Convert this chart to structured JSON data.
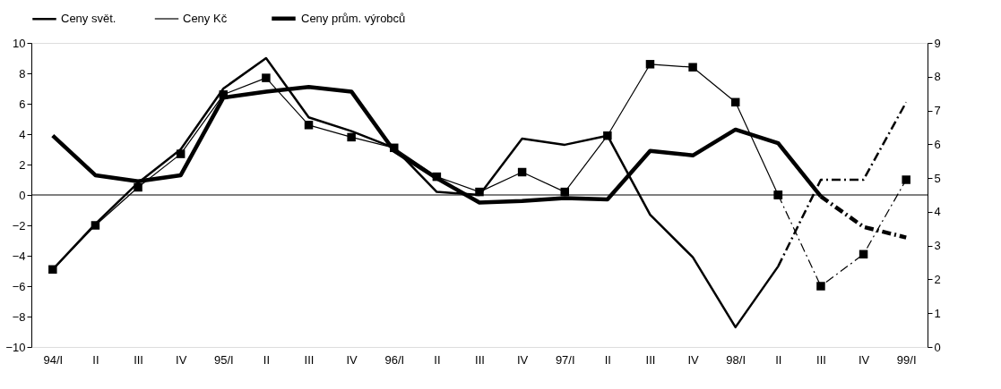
{
  "chart_data": {
    "type": "line",
    "categories": [
      "94/I",
      "II",
      "III",
      "IV",
      "95/I",
      "II",
      "III",
      "IV",
      "96/I",
      "II",
      "III",
      "IV",
      "97/I",
      "II",
      "III",
      "IV",
      "98/I",
      "II",
      "III",
      "IV",
      "99/I"
    ],
    "series": [
      {
        "name": "Ceny svět.",
        "color": "#000000",
        "marker": "none",
        "line_style": "solid",
        "values": [
          -4.9,
          -1.9,
          0.8,
          3.0,
          7.0,
          9.0,
          5.1,
          4.2,
          3.1,
          0.2,
          0.0,
          3.7,
          3.3,
          3.9,
          -1.3,
          -4.1,
          -8.7,
          -4.7,
          null,
          null,
          null
        ]
      },
      {
        "name": "Ceny Kč",
        "color": "#000000",
        "marker": "square",
        "line_style": "solid",
        "values": [
          -4.9,
          -2.0,
          0.5,
          2.7,
          6.6,
          7.7,
          4.6,
          3.8,
          3.1,
          1.2,
          0.2,
          1.5,
          0.2,
          3.9,
          8.6,
          8.4,
          6.1,
          0.0,
          null,
          null,
          null
        ]
      },
      {
        "name": "Ceny prům. výrobců",
        "color": "#000000",
        "marker": "none",
        "line_style": "solid",
        "values": [
          3.9,
          1.3,
          0.9,
          1.3,
          6.4,
          6.8,
          7.1,
          6.8,
          2.9,
          1.1,
          -0.5,
          -0.4,
          -0.2,
          -0.3,
          2.9,
          2.6,
          4.3,
          3.4,
          -0.1,
          null,
          null
        ]
      },
      {
        "color": "#000000",
        "marker": "none",
        "line_style": "dashed",
        "values": [
          null,
          null,
          null,
          null,
          null,
          null,
          null,
          null,
          null,
          null,
          null,
          null,
          null,
          null,
          null,
          null,
          null,
          -4.7,
          1.0,
          1.0,
          6.1
        ]
      },
      {
        "color": "#000000",
        "marker": "square",
        "line_style": "dashed",
        "values": [
          null,
          null,
          null,
          null,
          null,
          null,
          null,
          null,
          null,
          null,
          null,
          null,
          null,
          null,
          null,
          null,
          null,
          0.0,
          -6.0,
          -3.9,
          1.0
        ]
      },
      {
        "color": "#000000",
        "marker": "none",
        "line_style": "dashed",
        "values": [
          null,
          null,
          null,
          null,
          null,
          null,
          null,
          null,
          null,
          null,
          null,
          null,
          null,
          null,
          null,
          null,
          null,
          null,
          -0.1,
          -2.1,
          -2.8
        ]
      }
    ],
    "ylim": [
      -10,
      10
    ],
    "yticks": [
      -10,
      -8,
      -6,
      -4,
      -2,
      0,
      2,
      4,
      6,
      8,
      10
    ],
    "y2lim": [
      0,
      9
    ],
    "y2ticks": [
      0,
      1,
      2,
      3,
      4,
      5,
      6,
      7,
      8,
      9
    ],
    "ref_lines": [
      {
        "axis": "y",
        "value": 0
      }
    ],
    "grid": false,
    "legend": "top"
  }
}
